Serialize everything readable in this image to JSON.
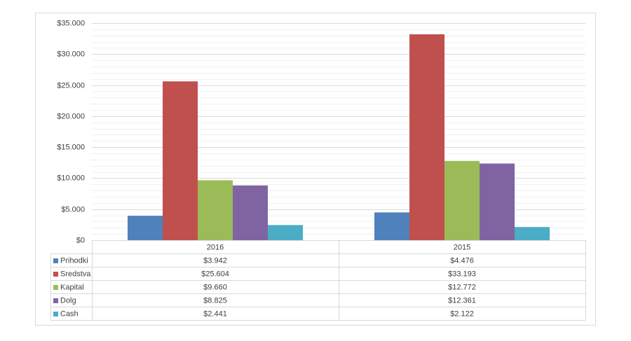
{
  "chart_data": {
    "type": "bar",
    "categories": [
      "2016",
      "2015"
    ],
    "series": [
      {
        "name": "Prihodki",
        "color": "#4f81bd",
        "values": [
          3942,
          4476
        ],
        "value_labels": [
          "$3.942",
          "$4.476"
        ]
      },
      {
        "name": "Sredstva",
        "color": "#c0504d",
        "values": [
          25604,
          33193
        ],
        "value_labels": [
          "$25.604",
          "$33.193"
        ]
      },
      {
        "name": "Kapital",
        "color": "#9bbb59",
        "values": [
          9660,
          12772
        ],
        "value_labels": [
          "$9.660",
          "$12.772"
        ]
      },
      {
        "name": "Dolg",
        "color": "#8064a2",
        "values": [
          8825,
          12361
        ],
        "value_labels": [
          "$8.825",
          "$12.361"
        ]
      },
      {
        "name": "Cash",
        "color": "#4bacc6",
        "values": [
          2441,
          2122
        ],
        "value_labels": [
          "$2.441",
          "$2.122"
        ]
      }
    ],
    "ylim": [
      0,
      35000
    ],
    "yticks": [
      {
        "value": 0,
        "label": "$0"
      },
      {
        "value": 5000,
        "label": "$5.000"
      },
      {
        "value": 10000,
        "label": "$10.000"
      },
      {
        "value": 15000,
        "label": "$15.000"
      },
      {
        "value": 20000,
        "label": "$20.000"
      },
      {
        "value": 25000,
        "label": "$25.000"
      },
      {
        "value": 30000,
        "label": "$30.000"
      },
      {
        "value": 35000,
        "label": "$35.000"
      }
    ],
    "yticks_minor": [
      1000,
      2000,
      3000,
      4000,
      6000,
      7000,
      8000,
      9000,
      11000,
      12000,
      13000,
      14000,
      16000,
      17000,
      18000,
      19000,
      21000,
      22000,
      23000,
      24000,
      26000,
      27000,
      28000,
      29000,
      31000,
      32000,
      33000,
      34000
    ],
    "grid": true,
    "data_table": true
  }
}
